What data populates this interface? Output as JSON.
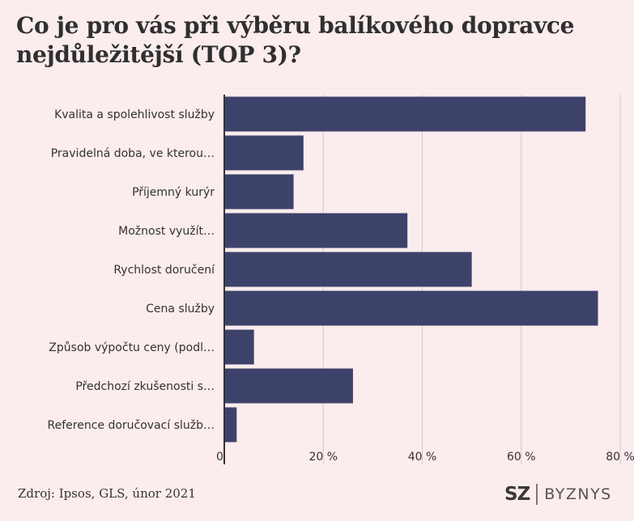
{
  "title": "Co je pro vás při výběru balíkového dopravce nejdůležitější (TOP 3)?",
  "source": "Zdroj: Ipsos, GLS, únor 2021",
  "logo": {
    "left": "SZ",
    "right": "BYZNYS"
  },
  "colors": {
    "background": "#fbeced",
    "bar": "#3d426b",
    "grid": "#d9c6c8",
    "axis": "#333333",
    "text": "#333333"
  },
  "chart_data": {
    "type": "bar",
    "orientation": "horizontal",
    "categories": [
      "Kvalita a spolehlivost služby",
      "Pravidelná doba, ve kterou…",
      "Příjemný kurýr",
      "Možnost využít…",
      "Rychlost doručení",
      "Cena služby",
      "Způsob výpočtu ceny (podl…",
      "Předchozí zkušenosti s…",
      "Reference doručovací služb…"
    ],
    "values": [
      73,
      16,
      14,
      37,
      50,
      75.5,
      6,
      26,
      2.5
    ],
    "xlim": [
      0,
      80
    ],
    "xticks": [
      0,
      20,
      40,
      60,
      80
    ],
    "xtick_labels": [
      "0",
      "20 %",
      "40 %",
      "60 %",
      "80 %"
    ],
    "grid": true
  }
}
